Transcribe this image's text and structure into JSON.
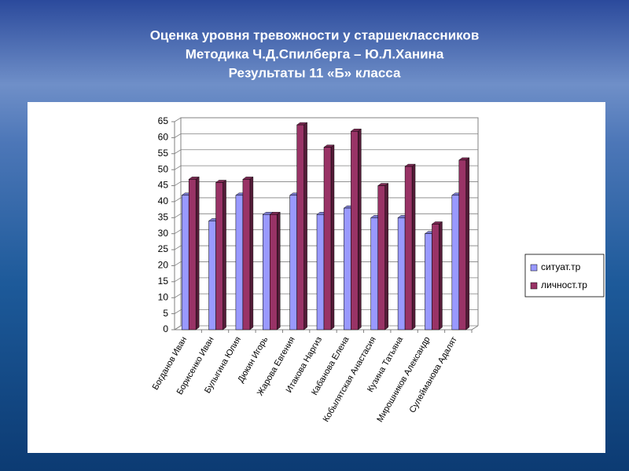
{
  "chart_data": {
    "type": "bar",
    "title": [
      "Оценка уровня тревожности у старшеклассников",
      "Методика Ч.Д.Спилберга – Ю.Л.Ханина",
      "Результаты 11 «Б» класса"
    ],
    "categories": [
      "Богданов Иван",
      "Борисенко Иван",
      "Булыгина Юлия",
      "Дюкин Игорь",
      "Жарова Евгения",
      "Итакова Наргиз",
      "Кабанова Елена",
      "Кобылятская Анастасия",
      "Кузина Татьяна",
      "Мирошников Александр",
      "Сулейманова Адалят"
    ],
    "series": [
      {
        "name": "ситуат.тр",
        "color": "#9999ff",
        "values": [
          42,
          34,
          42,
          36,
          42,
          36,
          38,
          35,
          35,
          30,
          42
        ]
      },
      {
        "name": "личност.тр",
        "color": "#993366",
        "values": [
          47,
          46,
          47,
          36,
          64,
          57,
          62,
          45,
          51,
          33,
          53
        ]
      }
    ],
    "ylim": [
      0,
      65
    ],
    "yticks": [
      0,
      5,
      10,
      15,
      20,
      25,
      30,
      35,
      40,
      45,
      50,
      55,
      60,
      65
    ],
    "grid": true,
    "legend": "right"
  }
}
